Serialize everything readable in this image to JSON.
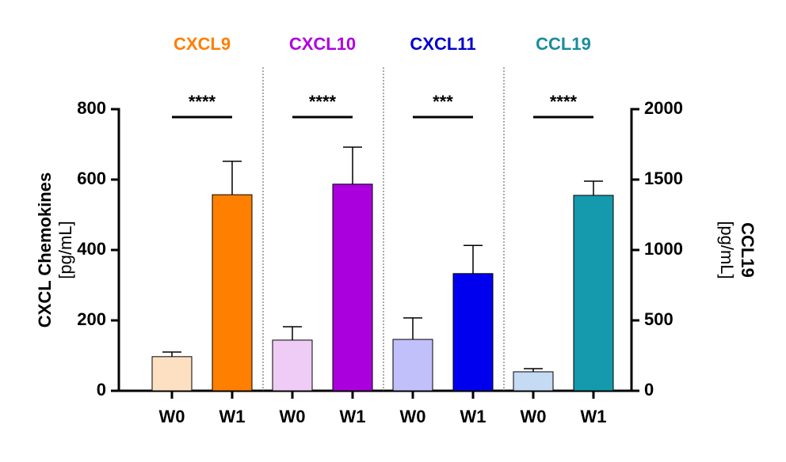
{
  "chart_data": {
    "type": "bar",
    "ylabel": "CXCL Chemokines",
    "yunit": "[pg/mL]",
    "y2label": "CCL19",
    "y2unit": "[pg/mL]",
    "ylim": [
      0,
      800
    ],
    "yticks": [
      0,
      200,
      400,
      600,
      800
    ],
    "y2lim": [
      0,
      2000
    ],
    "y2ticks": [
      0,
      500,
      1000,
      1500,
      2000
    ],
    "series": [
      {
        "name": "CXCL9",
        "color": "#ff7f00",
        "categories": [
          "W0",
          "W1"
        ],
        "colors": [
          "#fde0c2",
          "#ff7f00"
        ],
        "values": [
          97,
          557
        ],
        "errors": [
          13,
          95
        ],
        "significance": "****"
      },
      {
        "name": "CXCL10",
        "color": "#b000e0",
        "categories": [
          "W0",
          "W1"
        ],
        "colors": [
          "#eeccf5",
          "#aa00dd"
        ],
        "values": [
          144,
          587
        ],
        "errors": [
          38,
          105
        ],
        "significance": "****"
      },
      {
        "name": "CXCL11",
        "color": "#0000cc",
        "categories": [
          "W0",
          "W1"
        ],
        "colors": [
          "#c2c0fb",
          "#0000ee"
        ],
        "values": [
          146,
          333
        ],
        "errors": [
          61,
          80
        ],
        "significance": "***"
      },
      {
        "name": "CCL19",
        "color": "#1a8c9c",
        "axis": "y2",
        "categories": [
          "W0",
          "W1"
        ],
        "colors": [
          "#c5daf3",
          "#1499ad"
        ],
        "values": [
          135,
          1388
        ],
        "errors": [
          22,
          101
        ],
        "significance": "****"
      }
    ]
  }
}
